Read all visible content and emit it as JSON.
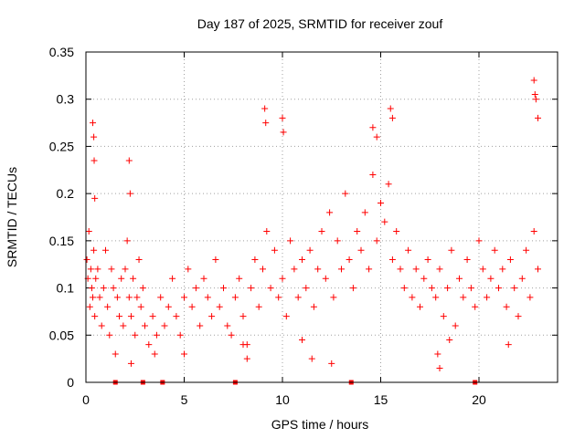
{
  "chart_data": {
    "type": "scatter",
    "title": "Day 187 of 2025, SRMTID for receiver zouf",
    "xlabel": "GPS time / hours",
    "ylabel": "SRMTID / TECUs",
    "xlim": [
      0,
      24
    ],
    "ylim": [
      0,
      0.35
    ],
    "xticks": [
      0,
      5,
      10,
      15,
      20
    ],
    "xtick_labels": [
      "0",
      "5",
      "10",
      "15",
      "20"
    ],
    "yticks": [
      0,
      0.05,
      0.1,
      0.15,
      0.2,
      0.25,
      0.3,
      0.35
    ],
    "ytick_labels": [
      "0",
      "0.05",
      "0.1",
      "0.15",
      "0.2",
      "0.25",
      "0.3",
      "0.35"
    ],
    "grid": true,
    "marker": "+",
    "color": "#ff0000",
    "series": [
      {
        "name": "SRMTID",
        "x": [
          0.05,
          0.1,
          0.15,
          0.2,
          0.25,
          0.3,
          0.35,
          0.4,
          0.45,
          0.5,
          0.6,
          0.7,
          0.8,
          0.9,
          1.0,
          1.1,
          1.2,
          1.3,
          1.4,
          1.5,
          1.6,
          1.7,
          1.8,
          1.9,
          2.0,
          2.1,
          2.2,
          2.3,
          2.4,
          2.5,
          2.6,
          2.7,
          2.8,
          2.9,
          3.0,
          3.2,
          3.4,
          3.6,
          3.8,
          4.0,
          4.2,
          4.4,
          4.6,
          4.8,
          5.0,
          5.2,
          5.4,
          5.6,
          5.8,
          6.0,
          6.2,
          6.4,
          6.6,
          6.8,
          7.0,
          7.2,
          7.4,
          7.6,
          7.8,
          8.0,
          8.2,
          8.4,
          8.6,
          8.8,
          9.0,
          9.2,
          9.4,
          9.6,
          9.8,
          10.0,
          10.2,
          10.4,
          10.6,
          10.8,
          11.0,
          11.2,
          11.4,
          11.6,
          11.8,
          12.0,
          12.2,
          12.4,
          12.6,
          12.8,
          13.0,
          13.2,
          13.4,
          13.6,
          13.8,
          14.0,
          14.2,
          14.4,
          14.6,
          14.8,
          15.0,
          15.2,
          15.4,
          15.6,
          15.8,
          16.0,
          16.2,
          16.4,
          16.6,
          16.8,
          17.0,
          17.2,
          17.4,
          17.6,
          17.8,
          18.0,
          18.2,
          18.4,
          18.6,
          18.8,
          19.0,
          19.2,
          19.4,
          19.6,
          19.8,
          20.0,
          20.2,
          20.4,
          20.6,
          20.8,
          21.0,
          21.2,
          21.4,
          21.6,
          21.8,
          22.0,
          22.2,
          22.4,
          22.6,
          22.8,
          23.0,
          0.35,
          0.4,
          0.42,
          0.45,
          2.2,
          2.25,
          9.1,
          9.15,
          10.0,
          10.05,
          15.5,
          15.6,
          14.6,
          14.8,
          22.8,
          22.85,
          22.9,
          23.0,
          2.3,
          3.5,
          5.0,
          17.9,
          18.0,
          11.0,
          11.5,
          12.5,
          8.0,
          8.2,
          18.5,
          21.5
        ],
        "y": [
          0.13,
          0.11,
          0.16,
          0.08,
          0.12,
          0.1,
          0.09,
          0.14,
          0.07,
          0.11,
          0.12,
          0.09,
          0.06,
          0.1,
          0.14,
          0.08,
          0.05,
          0.12,
          0.1,
          0.03,
          0.09,
          0.07,
          0.11,
          0.06,
          0.12,
          0.15,
          0.09,
          0.07,
          0.11,
          0.05,
          0.09,
          0.13,
          0.08,
          0.1,
          0.06,
          0.04,
          0.07,
          0.05,
          0.09,
          0.06,
          0.08,
          0.11,
          0.07,
          0.05,
          0.09,
          0.12,
          0.08,
          0.1,
          0.06,
          0.11,
          0.09,
          0.07,
          0.13,
          0.08,
          0.1,
          0.06,
          0.05,
          0.09,
          0.11,
          0.07,
          0.04,
          0.1,
          0.13,
          0.08,
          0.12,
          0.16,
          0.1,
          0.14,
          0.09,
          0.11,
          0.07,
          0.15,
          0.12,
          0.09,
          0.13,
          0.1,
          0.14,
          0.08,
          0.12,
          0.16,
          0.11,
          0.18,
          0.09,
          0.15,
          0.12,
          0.2,
          0.13,
          0.1,
          0.16,
          0.14,
          0.18,
          0.12,
          0.22,
          0.15,
          0.19,
          0.17,
          0.21,
          0.13,
          0.16,
          0.12,
          0.1,
          0.14,
          0.09,
          0.12,
          0.08,
          0.11,
          0.13,
          0.1,
          0.09,
          0.12,
          0.07,
          0.1,
          0.14,
          0.06,
          0.11,
          0.09,
          0.13,
          0.1,
          0.08,
          0.15,
          0.12,
          0.09,
          0.11,
          0.14,
          0.1,
          0.12,
          0.08,
          0.13,
          0.1,
          0.07,
          0.11,
          0.14,
          0.09,
          0.16,
          0.12,
          0.275,
          0.26,
          0.235,
          0.195,
          0.235,
          0.2,
          0.29,
          0.275,
          0.28,
          0.265,
          0.29,
          0.28,
          0.27,
          0.26,
          0.32,
          0.305,
          0.3,
          0.28,
          0.02,
          0.03,
          0.03,
          0.03,
          0.015,
          0.045,
          0.025,
          0.02,
          0.04,
          0.025,
          0.045,
          0.04
        ]
      }
    ],
    "zero_markers_x": [
      1.5,
      2.9,
      3.9,
      7.6,
      13.5,
      19.8
    ]
  }
}
